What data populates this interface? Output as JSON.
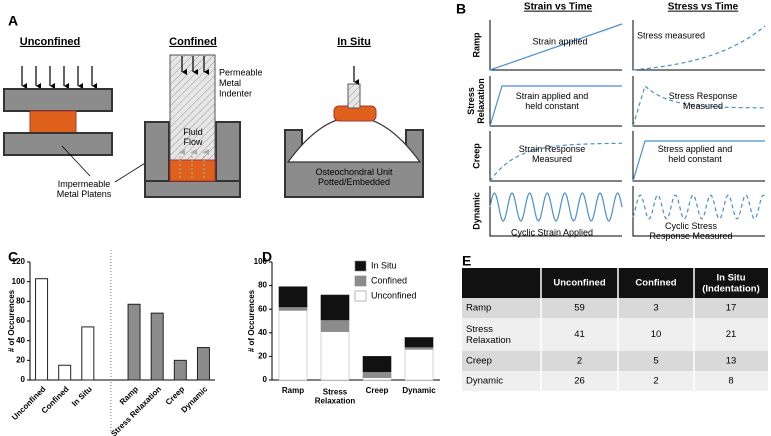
{
  "panel_a": {
    "letter": "A",
    "unconfined": {
      "title": "Unconfined",
      "label": "Impermeable\nMetal Platens"
    },
    "confined": {
      "title": "Confined",
      "indenter": "Permeable\nMetal\nIndenter",
      "flow": "Fluid\nFlow"
    },
    "in_situ": {
      "title": "In Situ",
      "label": "Osteochondral Unit\nPotted/Embedded"
    }
  },
  "panel_b": {
    "letter": "B",
    "columns": [
      "Strain vs Time",
      "Stress vs Time"
    ],
    "rows": [
      {
        "label": "Ramp",
        "strain": "Strain applied",
        "stress": "Stress measured"
      },
      {
        "label": "Stress\nRelaxation",
        "strain": "Strain applied and\nheld constant",
        "stress": "Stress Response\nMeasured"
      },
      {
        "label": "Creep",
        "strain": "Strain Response\nMeasured",
        "stress": "Stress applied and\nheld constant"
      },
      {
        "label": "Dynamic",
        "strain": "Cyclic Strain Applied",
        "stress": "Cyclic Stress\nResponse Measured"
      }
    ]
  },
  "chart_data": [
    {
      "type": "bar",
      "panel_label": "C",
      "y_label": "# of Occurences",
      "categories": [
        "Unconfined",
        "Confined",
        "In Situ",
        null,
        "Ramp",
        "Stress Relaxation",
        "Creep",
        "Dynamic"
      ],
      "series": [
        {
          "color": "#ffffff",
          "values": [
            103,
            15,
            54,
            null,
            null,
            null,
            null,
            null
          ]
        },
        {
          "color": "#8c8c8c",
          "values": [
            null,
            null,
            null,
            null,
            77,
            68,
            20,
            33
          ]
        }
      ],
      "ylim": [
        0,
        120
      ],
      "yticks": [
        0,
        20,
        40,
        60,
        80,
        100,
        120
      ]
    },
    {
      "type": "stacked_bar",
      "panel_label": "D",
      "y_label": "# of Occurences",
      "categories": [
        "Ramp",
        "Stress\nRelaxation",
        "Creep",
        "Dynamic"
      ],
      "series": [
        {
          "name": "Unconfined",
          "color": "#ffffff",
          "values": [
            59,
            41,
            2,
            26
          ]
        },
        {
          "name": "Confined",
          "color": "#8c8c8c",
          "values": [
            3,
            10,
            5,
            2
          ]
        },
        {
          "name": "In Situ",
          "color": "#111111",
          "values": [
            17,
            21,
            13,
            8
          ]
        }
      ],
      "ylim": [
        0,
        100
      ],
      "yticks": [
        0,
        20,
        40,
        60,
        80,
        100
      ]
    }
  ],
  "panel_e": {
    "letter": "E",
    "header": [
      "Unconfined",
      "Confined",
      "In Situ\n(Indentation)"
    ],
    "rows": [
      [
        "Ramp",
        59,
        3,
        17
      ],
      [
        "Stress\nRelaxation",
        41,
        10,
        21
      ],
      [
        "Creep",
        2,
        5,
        13
      ],
      [
        "Dynamic",
        26,
        2,
        8
      ]
    ]
  }
}
